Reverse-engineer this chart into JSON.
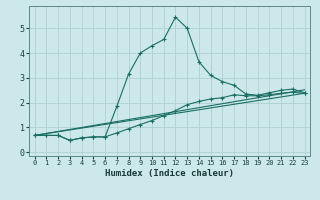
{
  "title": "",
  "xlabel": "Humidex (Indice chaleur)",
  "ylabel": "",
  "bg_color": "#cce8ea",
  "grid_color": "#b0d0d3",
  "line_color": "#1a6e64",
  "xlim": [
    -0.5,
    23.5
  ],
  "ylim": [
    -0.15,
    5.9
  ],
  "xticks": [
    0,
    1,
    2,
    3,
    4,
    5,
    6,
    7,
    8,
    9,
    10,
    11,
    12,
    13,
    14,
    15,
    16,
    17,
    18,
    19,
    20,
    21,
    22,
    23
  ],
  "yticks": [
    0,
    1,
    2,
    3,
    4,
    5
  ],
  "line1_x": [
    0,
    1,
    2,
    3,
    4,
    5,
    6,
    7,
    8,
    9,
    10,
    11,
    12,
    13,
    14,
    15,
    16,
    17,
    18,
    19,
    20,
    21,
    22,
    23
  ],
  "line1_y": [
    0.68,
    0.68,
    0.68,
    0.48,
    0.58,
    0.62,
    0.62,
    1.85,
    3.15,
    4.0,
    4.3,
    4.55,
    5.45,
    5.0,
    3.65,
    3.1,
    2.85,
    2.7,
    2.35,
    2.3,
    2.4,
    2.5,
    2.55,
    2.4
  ],
  "line2_x": [
    0,
    1,
    2,
    3,
    4,
    5,
    6,
    7,
    8,
    9,
    10,
    11,
    12,
    13,
    14,
    15,
    16,
    17,
    18,
    19,
    20,
    21,
    22,
    23
  ],
  "line2_y": [
    0.68,
    0.68,
    0.68,
    0.48,
    0.58,
    0.62,
    0.62,
    0.78,
    0.95,
    1.12,
    1.28,
    1.48,
    1.68,
    1.92,
    2.05,
    2.15,
    2.2,
    2.32,
    2.28,
    2.28,
    2.32,
    2.38,
    2.42,
    2.38
  ],
  "line3_x": [
    0,
    23
  ],
  "line3_y": [
    0.68,
    2.38
  ],
  "line4_x": [
    0,
    23
  ],
  "line4_y": [
    0.68,
    2.52
  ]
}
